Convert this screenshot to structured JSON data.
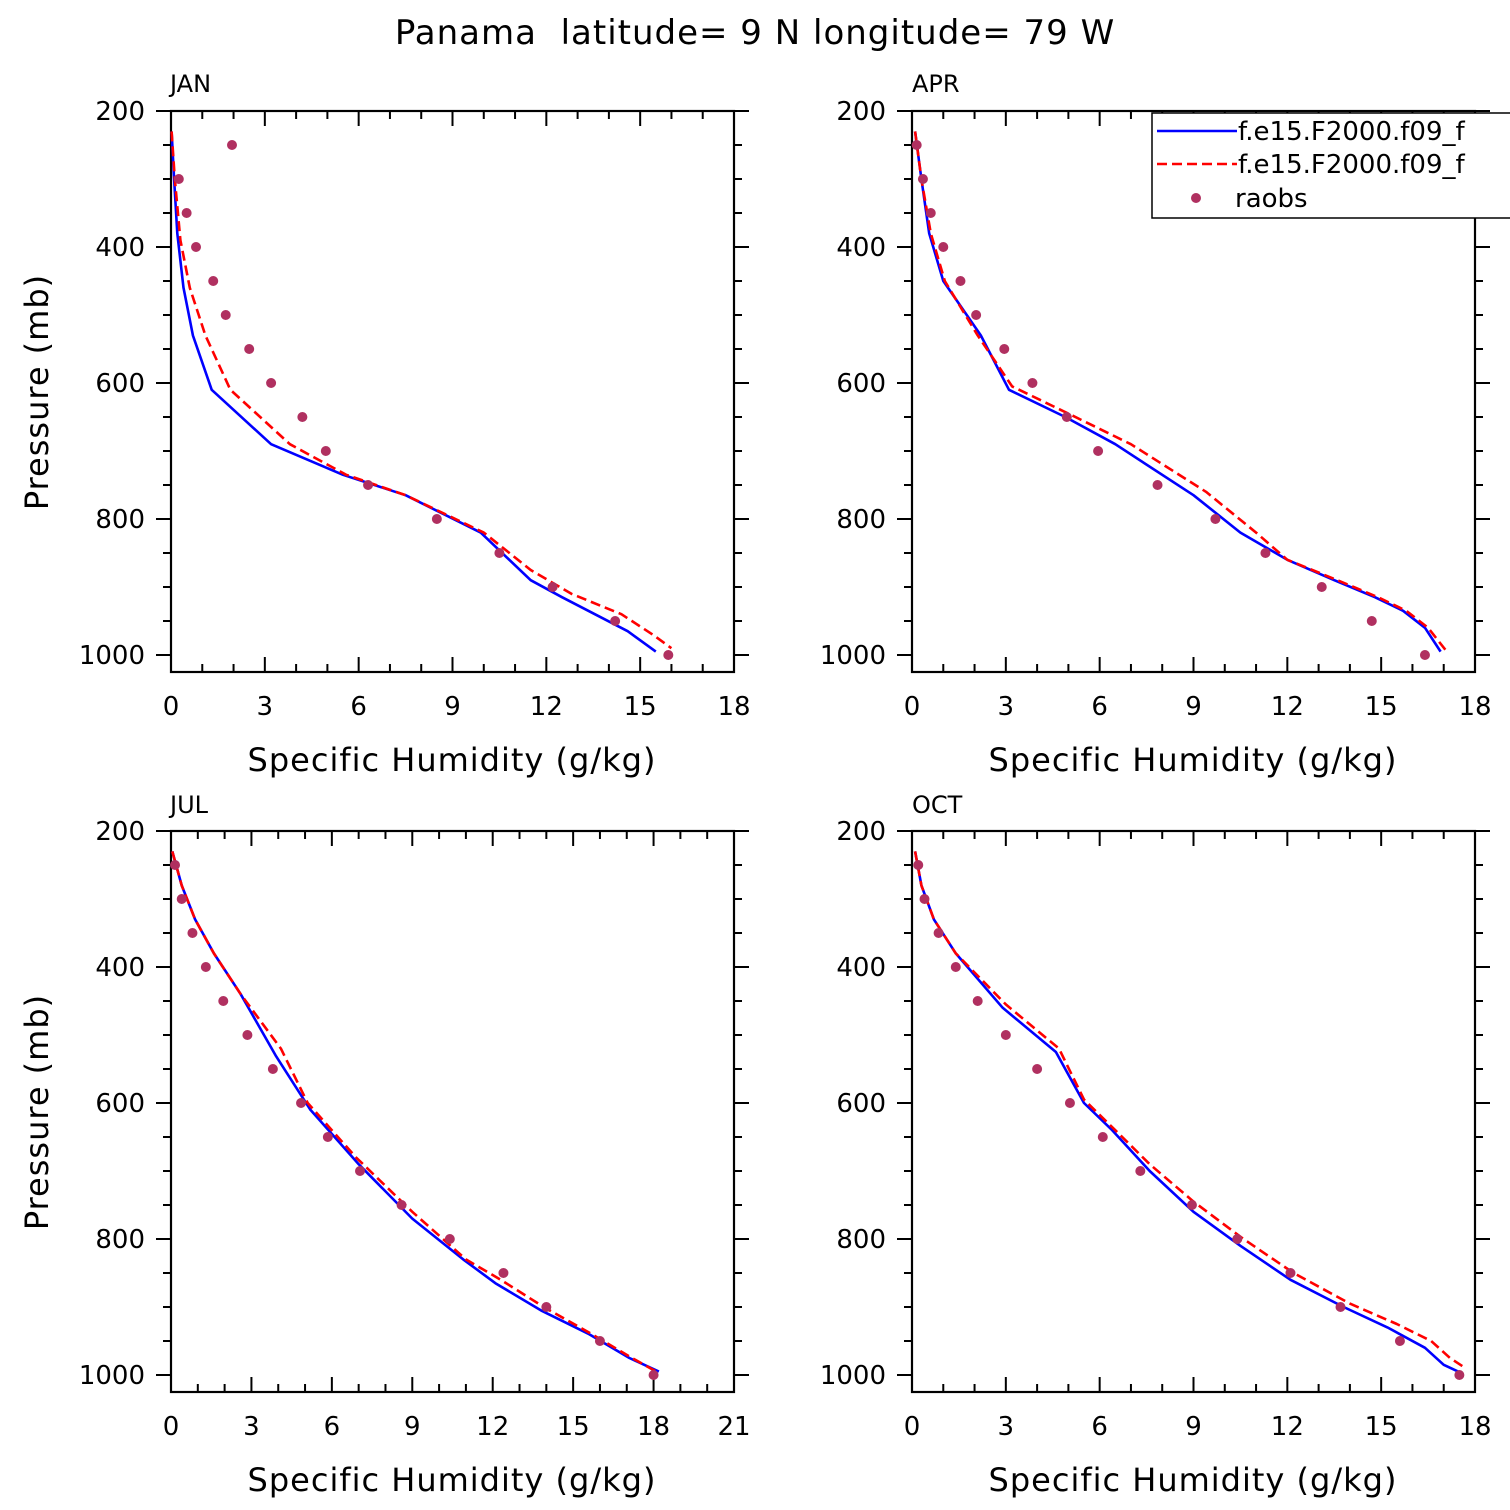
{
  "figure": {
    "title": "Panama  latitude= 9 N longitude= 79 W"
  },
  "legend": {
    "entries": [
      {
        "label": "f.e15.F2000.f09_f",
        "style": "solid",
        "color": "#0000ff"
      },
      {
        "label": "f.e15.F2000.f09_f",
        "style": "dashed",
        "color": "#ff0000"
      },
      {
        "label": "raobs",
        "style": "marker",
        "color": "#b03060"
      }
    ]
  },
  "chart_data": [
    {
      "type": "line",
      "panel": "JAN",
      "xlabel": "Specific Humidity (g/kg)",
      "ylabel": "Pressure (mb)",
      "xlim": [
        0,
        18
      ],
      "xticks": [
        0,
        3,
        6,
        9,
        12,
        15,
        18
      ],
      "ylim": [
        200,
        1025
      ],
      "yticks": [
        200,
        400,
        600,
        800,
        1000
      ],
      "y_reversed": true,
      "series": [
        {
          "style": "solid",
          "color": "#0000ff",
          "points": [
            [
              0.02,
              230
            ],
            [
              0.1,
              300
            ],
            [
              0.2,
              380
            ],
            [
              0.4,
              460
            ],
            [
              0.7,
              530
            ],
            [
              1.3,
              610
            ],
            [
              3.2,
              690
            ],
            [
              5.5,
              735
            ],
            [
              7.5,
              765
            ],
            [
              9.9,
              820
            ],
            [
              11.5,
              890
            ],
            [
              12.5,
              915
            ],
            [
              14.6,
              965
            ],
            [
              15.5,
              995
            ]
          ]
        },
        {
          "style": "dashed",
          "color": "#ff0000",
          "points": [
            [
              0.02,
              230
            ],
            [
              0.12,
              300
            ],
            [
              0.3,
              390
            ],
            [
              0.6,
              460
            ],
            [
              1.1,
              530
            ],
            [
              1.9,
              610
            ],
            [
              3.8,
              690
            ],
            [
              5.6,
              735
            ],
            [
              7.5,
              765
            ],
            [
              10,
              820
            ],
            [
              11.5,
              875
            ],
            [
              12.8,
              910
            ],
            [
              14.4,
              940
            ],
            [
              15.4,
              970
            ],
            [
              16,
              990
            ]
          ]
        },
        {
          "style": "marker",
          "color": "#b03060",
          "points": [
            [
              1.95,
              250
            ],
            [
              0.25,
              300
            ],
            [
              0.5,
              350
            ],
            [
              0.8,
              400
            ],
            [
              1.35,
              450
            ],
            [
              1.75,
              500
            ],
            [
              2.5,
              550
            ],
            [
              3.2,
              600
            ],
            [
              4.2,
              650
            ],
            [
              4.95,
              700
            ],
            [
              6.3,
              750
            ],
            [
              8.5,
              800
            ],
            [
              10.5,
              850
            ],
            [
              12.2,
              900
            ],
            [
              14.2,
              950
            ],
            [
              15.9,
              1000
            ]
          ]
        }
      ]
    },
    {
      "type": "line",
      "panel": "APR",
      "xlabel": "Specific Humidity (g/kg)",
      "ylabel": "",
      "xlim": [
        0,
        18
      ],
      "xticks": [
        0,
        3,
        6,
        9,
        12,
        15,
        18
      ],
      "ylim": [
        200,
        1025
      ],
      "yticks": [
        200,
        400,
        600,
        800,
        1000
      ],
      "y_reversed": true,
      "series": [
        {
          "style": "solid",
          "color": "#0000ff",
          "points": [
            [
              0.1,
              230
            ],
            [
              0.3,
              300
            ],
            [
              0.55,
              380
            ],
            [
              1,
              450
            ],
            [
              2.2,
              530
            ],
            [
              3.1,
              610
            ],
            [
              4.9,
              650
            ],
            [
              6.5,
              690
            ],
            [
              9,
              765
            ],
            [
              10.5,
              820
            ],
            [
              12,
              860
            ],
            [
              13.5,
              890
            ],
            [
              14.8,
              915
            ],
            [
              15.7,
              935
            ],
            [
              16.4,
              960
            ],
            [
              16.9,
              995
            ]
          ]
        },
        {
          "style": "dashed",
          "color": "#ff0000",
          "points": [
            [
              0.1,
              230
            ],
            [
              0.3,
              300
            ],
            [
              0.6,
              380
            ],
            [
              1.05,
              450
            ],
            [
              2.1,
              530
            ],
            [
              3.2,
              605
            ],
            [
              5,
              645
            ],
            [
              7,
              690
            ],
            [
              9.4,
              760
            ],
            [
              11,
              820
            ],
            [
              12,
              860
            ],
            [
              13.6,
              890
            ],
            [
              14.9,
              915
            ],
            [
              15.8,
              935
            ],
            [
              16.5,
              960
            ],
            [
              17.1,
              995
            ]
          ]
        },
        {
          "style": "marker",
          "color": "#b03060",
          "points": [
            [
              0.15,
              250
            ],
            [
              0.35,
              300
            ],
            [
              0.6,
              350
            ],
            [
              1,
              400
            ],
            [
              1.55,
              450
            ],
            [
              2.05,
              500
            ],
            [
              2.95,
              550
            ],
            [
              3.85,
              600
            ],
            [
              4.95,
              650
            ],
            [
              5.95,
              700
            ],
            [
              7.85,
              750
            ],
            [
              9.7,
              800
            ],
            [
              11.3,
              850
            ],
            [
              13.1,
              900
            ],
            [
              14.7,
              950
            ],
            [
              16.4,
              1000
            ]
          ]
        }
      ]
    },
    {
      "type": "line",
      "panel": "JUL",
      "xlabel": "Specific Humidity (g/kg)",
      "ylabel": "Pressure (mb)",
      "xlim": [
        0,
        21
      ],
      "xticks": [
        0,
        3,
        6,
        9,
        12,
        15,
        18,
        21
      ],
      "ylim": [
        200,
        1025
      ],
      "yticks": [
        200,
        400,
        600,
        800,
        1000
      ],
      "y_reversed": true,
      "series": [
        {
          "style": "solid",
          "color": "#0000ff",
          "points": [
            [
              0.05,
              230
            ],
            [
              0.4,
              280
            ],
            [
              0.9,
              330
            ],
            [
              1.6,
              380
            ],
            [
              2.6,
              440
            ],
            [
              3.9,
              530
            ],
            [
              5.2,
              610
            ],
            [
              7,
              690
            ],
            [
              9,
              770
            ],
            [
              10.9,
              830
            ],
            [
              12.1,
              865
            ],
            [
              13.8,
              905
            ],
            [
              15.6,
              940
            ],
            [
              17.1,
              975
            ],
            [
              18.2,
              995
            ]
          ]
        },
        {
          "style": "dashed",
          "color": "#ff0000",
          "points": [
            [
              0.05,
              230
            ],
            [
              0.4,
              280
            ],
            [
              0.9,
              330
            ],
            [
              1.6,
              380
            ],
            [
              2.6,
              440
            ],
            [
              4.1,
              520
            ],
            [
              5.1,
              600
            ],
            [
              6.9,
              680
            ],
            [
              9,
              760
            ],
            [
              11,
              830
            ],
            [
              12.3,
              860
            ],
            [
              13.9,
              900
            ],
            [
              15.7,
              940
            ],
            [
              17.2,
              975
            ],
            [
              18.1,
              995
            ]
          ]
        },
        {
          "style": "marker",
          "color": "#b03060",
          "points": [
            [
              0.15,
              250
            ],
            [
              0.4,
              300
            ],
            [
              0.8,
              350
            ],
            [
              1.3,
              400
            ],
            [
              1.95,
              450
            ],
            [
              2.85,
              500
            ],
            [
              3.8,
              550
            ],
            [
              4.85,
              600
            ],
            [
              5.85,
              650
            ],
            [
              7.05,
              700
            ],
            [
              8.6,
              750
            ],
            [
              10.4,
              800
            ],
            [
              12.4,
              850
            ],
            [
              14,
              900
            ],
            [
              16,
              950
            ],
            [
              18,
              1000
            ]
          ]
        }
      ]
    },
    {
      "type": "line",
      "panel": "OCT",
      "xlabel": "Specific Humidity (g/kg)",
      "ylabel": "",
      "xlim": [
        0,
        18
      ],
      "xticks": [
        0,
        3,
        6,
        9,
        12,
        15,
        18
      ],
      "ylim": [
        200,
        1025
      ],
      "yticks": [
        200,
        400,
        600,
        800,
        1000
      ],
      "y_reversed": true,
      "series": [
        {
          "style": "solid",
          "color": "#0000ff",
          "points": [
            [
              0.1,
              230
            ],
            [
              0.3,
              280
            ],
            [
              0.7,
              330
            ],
            [
              1.4,
              380
            ],
            [
              2.9,
              460
            ],
            [
              4.6,
              525
            ],
            [
              5.5,
              600
            ],
            [
              6.4,
              640
            ],
            [
              7.6,
              700
            ],
            [
              9,
              760
            ],
            [
              10.5,
              810
            ],
            [
              12.1,
              860
            ],
            [
              13.8,
              900
            ],
            [
              15.2,
              930
            ],
            [
              16.4,
              960
            ],
            [
              17,
              985
            ],
            [
              17.6,
              998
            ]
          ]
        },
        {
          "style": "dashed",
          "color": "#ff0000",
          "points": [
            [
              0.1,
              230
            ],
            [
              0.3,
              280
            ],
            [
              0.7,
              330
            ],
            [
              1.4,
              380
            ],
            [
              3,
              455
            ],
            [
              4.7,
              520
            ],
            [
              5.5,
              595
            ],
            [
              6.5,
              640
            ],
            [
              7.6,
              690
            ],
            [
              9,
              745
            ],
            [
              10.6,
              800
            ],
            [
              12.2,
              850
            ],
            [
              14,
              895
            ],
            [
              15.5,
              925
            ],
            [
              16.6,
              950
            ],
            [
              17.2,
              975
            ],
            [
              17.7,
              990
            ]
          ]
        },
        {
          "style": "marker",
          "color": "#b03060",
          "points": [
            [
              0.2,
              250
            ],
            [
              0.4,
              300
            ],
            [
              0.85,
              350
            ],
            [
              1.4,
              400
            ],
            [
              2.1,
              450
            ],
            [
              3,
              500
            ],
            [
              4,
              550
            ],
            [
              5.05,
              600
            ],
            [
              6.1,
              650
            ],
            [
              7.3,
              700
            ],
            [
              8.95,
              750
            ],
            [
              10.4,
              800
            ],
            [
              12.1,
              850
            ],
            [
              13.7,
              900
            ],
            [
              15.6,
              950
            ],
            [
              17.5,
              1000
            ]
          ]
        }
      ]
    }
  ]
}
